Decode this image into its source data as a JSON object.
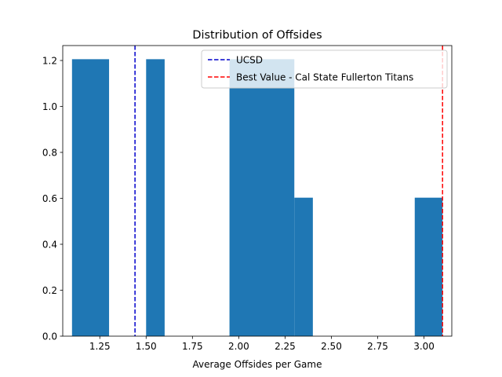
{
  "chart_data": {
    "type": "bar",
    "title": "Distribution of Offsides",
    "xlabel": "Average Offsides per Game",
    "ylabel": "",
    "xlim": [
      1.05,
      3.15
    ],
    "ylim": [
      0,
      1.265
    ],
    "bins": [
      {
        "x0": 1.1,
        "x1": 1.3,
        "value": 1.2056
      },
      {
        "x0": 1.3,
        "x1": 1.5,
        "value": 0
      },
      {
        "x0": 1.5,
        "x1": 1.6,
        "value": 1.2056
      },
      {
        "x0": 1.6,
        "x1": 1.95,
        "value": 0
      },
      {
        "x0": 1.95,
        "x1": 2.3,
        "value": 1.2056
      },
      {
        "x0": 2.3,
        "x1": 2.4,
        "value": 0.6028
      },
      {
        "x0": 2.4,
        "x1": 2.95,
        "value": 0
      },
      {
        "x0": 2.95,
        "x1": 3.1,
        "value": 0.6028
      }
    ],
    "series_color": "#1f77b4",
    "xticks": [
      "1.25",
      "1.50",
      "1.75",
      "2.00",
      "2.25",
      "2.50",
      "2.75",
      "3.00"
    ],
    "xtick_values": [
      1.25,
      1.5,
      1.75,
      2.0,
      2.25,
      2.5,
      2.75,
      3.0
    ],
    "yticks": [
      "0.0",
      "0.2",
      "0.4",
      "0.6",
      "0.8",
      "1.0",
      "1.2"
    ],
    "ytick_values": [
      0,
      0.2,
      0.4,
      0.6,
      0.8,
      1.0,
      1.2
    ],
    "reference_lines": [
      {
        "name": "UCSD",
        "x": 1.44,
        "color": "#0000cc",
        "style": "dashed"
      },
      {
        "name": "Best Value - Cal State Fullerton Titans",
        "x": 3.1,
        "color": "#ff0000",
        "style": "dashed"
      }
    ],
    "legend_position": "top-right",
    "grid": false
  }
}
